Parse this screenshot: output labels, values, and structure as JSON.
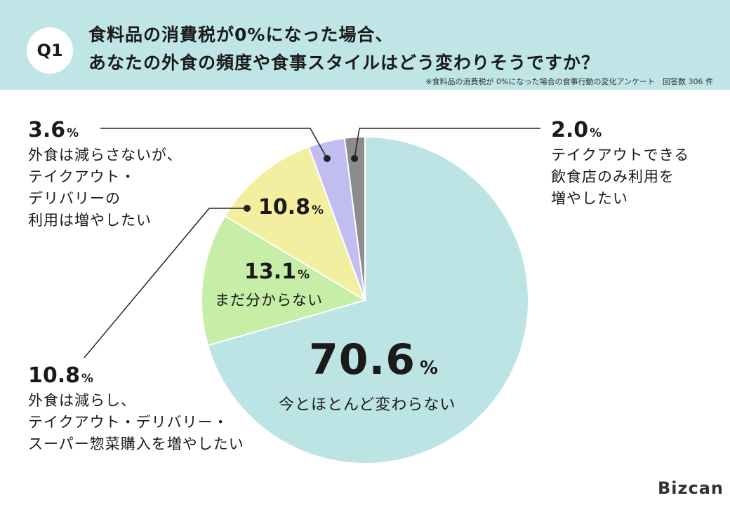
{
  "header": {
    "badge": "Q1",
    "title_line1": "食料品の消費税が0%になった場合、",
    "title_line2": "あなたの外食の頻度や食事スタイルはどう変わりそうですか？",
    "note": "※食料品の消費税が 0%になった場合の食事行動の変化アンケート　回答数 306 件"
  },
  "logo": "Bizcan",
  "chart_data": {
    "type": "pie",
    "start": "12 o'clock, clockwise",
    "categories": [
      "今とほとんど変わらない",
      "まだ分からない",
      "外食は減らし、テイクアウト・デリバリー・スーパー惣菜購入を増やしたい",
      "外食は減らさないが、テイクアウト・デリバリーの利用は増やしたい",
      "テイクアウトできる飲食店のみ利用を増やしたい"
    ],
    "values": [
      70.6,
      13.1,
      10.8,
      3.6,
      2.0
    ],
    "colors": [
      "#bde4e5",
      "#c6eea6",
      "#f3efa0",
      "#c1bdf1",
      "#8c8c8c"
    ],
    "value_labels": [
      "70.6",
      "13.1",
      "10.8",
      "3.6",
      "2.0"
    ],
    "unit": "%",
    "label_lines": [
      [
        "今とほとんど変わらない"
      ],
      [
        "まだ分からない"
      ],
      [
        "外食は減らし、",
        "テイクアウト・デリバリー・",
        "スーパー惣菜購入を増やしたい"
      ],
      [
        "外食は減らさないが、",
        "テイクアウト・",
        "デリバリーの",
        "利用は増やしたい"
      ],
      [
        "テイクアウトできる",
        "飲食店のみ利用を",
        "増やしたい"
      ]
    ]
  }
}
